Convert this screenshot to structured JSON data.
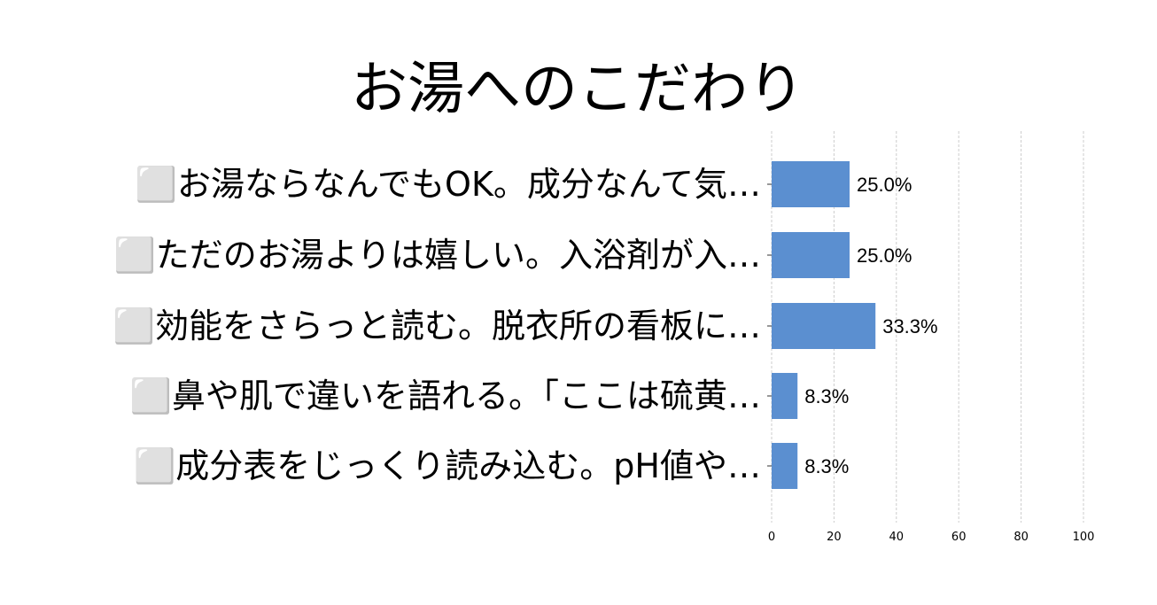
{
  "chart_data": {
    "type": "bar",
    "orientation": "horizontal",
    "title": "お湯へのこだわり",
    "categories": [
      "⬜お湯ならなんでもOK。成分なんて気…",
      "⬜ただのお湯よりは嬉しい。入浴剤が入…",
      "⬜効能をさらっと読む。脱衣所の看板に…",
      "⬜鼻や肌で違いを語れる。「ここは硫黄…",
      "⬜成分表をじっくり読み込む。pH値や…"
    ],
    "values": [
      25.0,
      25.0,
      33.3,
      8.3,
      8.3
    ],
    "value_labels": [
      "25.0%",
      "25.0%",
      "33.3%",
      "8.3%",
      "8.3%"
    ],
    "xlim": [
      0,
      100
    ],
    "xticks": [
      "0",
      "20",
      "40",
      "60",
      "80",
      "100"
    ],
    "grid": true,
    "bar_color": "#5b8fd0"
  }
}
